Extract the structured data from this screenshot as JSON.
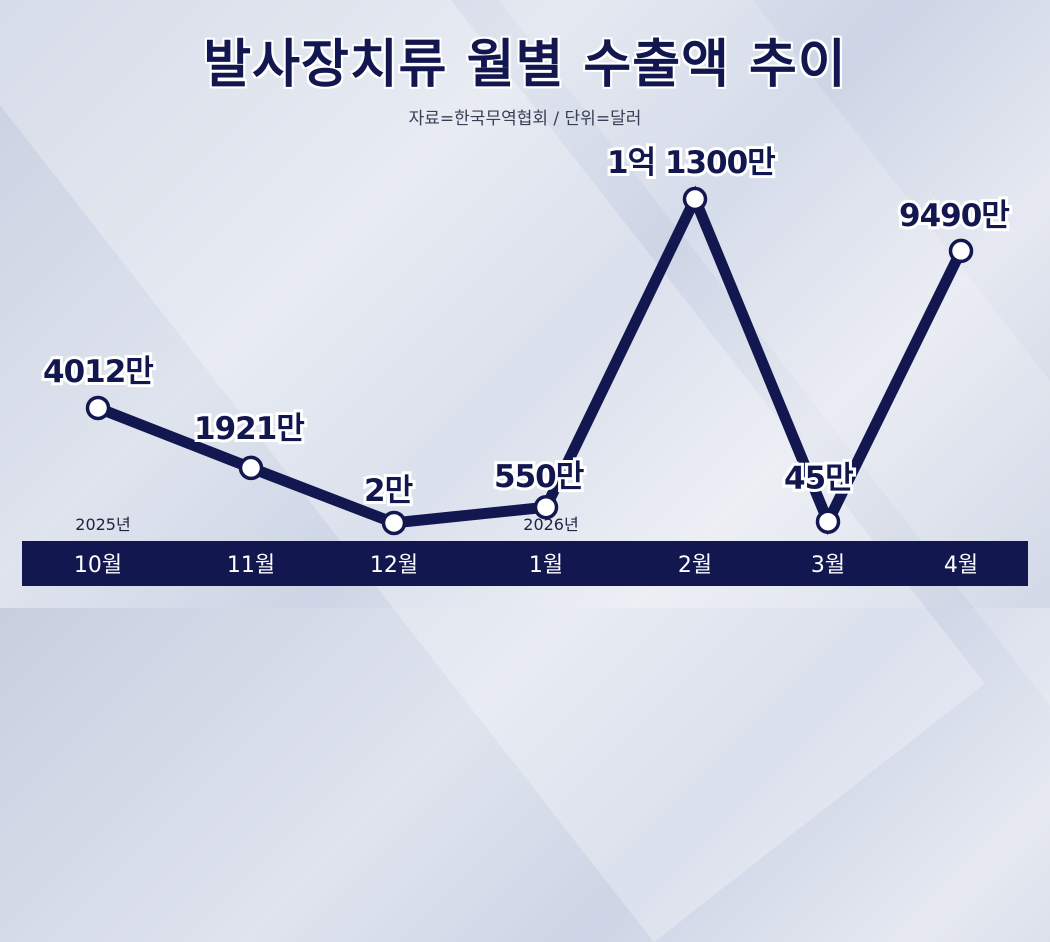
{
  "title": "발사장치류 월별 수출액 추이",
  "source": "자료=한국무역협회 / 단위=달러",
  "colors": {
    "line": "#12174f",
    "axis_bar": "#12174f",
    "point_fill": "#ffffff"
  },
  "chart_data": {
    "type": "line",
    "title": "발사장치류 월별 수출액 추이",
    "categories": [
      "10월",
      "11월",
      "12월",
      "1월",
      "2월",
      "3월",
      "4월"
    ],
    "year_labels": [
      {
        "index": 0,
        "label": "2025년"
      },
      {
        "index": 3,
        "label": "2026년"
      }
    ],
    "series": [
      {
        "values": [
          40120000,
          19210000,
          20000,
          5500000,
          113000000,
          450000,
          94900000
        ],
        "labels": [
          "4012만",
          "1921만",
          "2만",
          "550만",
          "1억 1300만",
          "45만",
          "9490만"
        ]
      }
    ],
    "ylim": [
      0,
      113000000
    ],
    "grid": false,
    "legend": "none"
  }
}
